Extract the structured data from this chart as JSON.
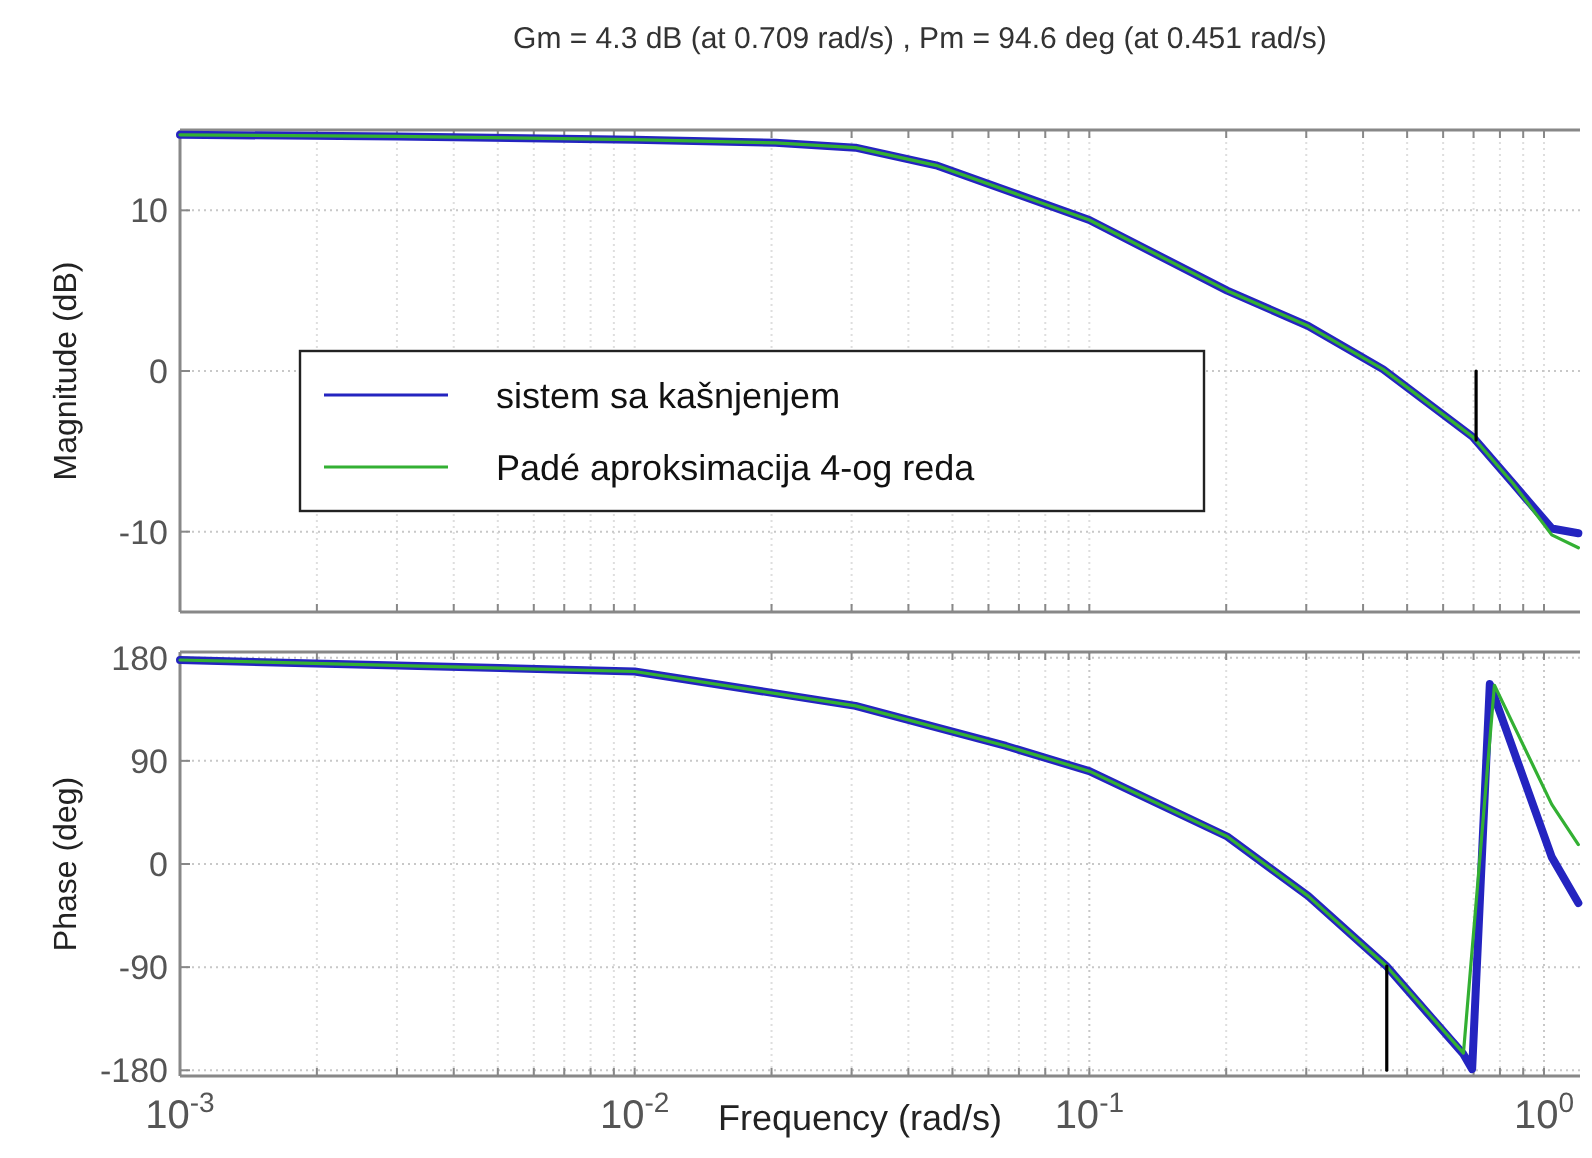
{
  "chart_data": [
    {
      "type": "line",
      "title": "Gm = 4.3 dB (at 0.709 rad/s) ,  Pm = 94.6 deg (at 0.451 rad/s)",
      "ylabel": "Magnitude (dB)",
      "log": "x",
      "grid": true,
      "legend": "left",
      "tick_labels": "y",
      "xlim": [
        0.001,
        1.2
      ],
      "ylim": [
        -15,
        15
      ],
      "yticks": [
        -10,
        0,
        10
      ],
      "xticks": [
        {
          "value": 0.001,
          "label": null
        },
        {
          "value": 0.002,
          "label": null
        },
        {
          "value": 0.003,
          "label": null
        },
        {
          "value": 0.004,
          "label": null
        },
        {
          "value": 0.005,
          "label": null
        },
        {
          "value": 0.006,
          "label": null
        },
        {
          "value": 0.007,
          "label": null
        },
        {
          "value": 0.008,
          "label": null
        },
        {
          "value": 0.009,
          "label": null
        },
        {
          "value": 0.01,
          "label": null
        },
        {
          "value": 0.02,
          "label": null
        },
        {
          "value": 0.03,
          "label": null
        },
        {
          "value": 0.04,
          "label": null
        },
        {
          "value": 0.05,
          "label": null
        },
        {
          "value": 0.06,
          "label": null
        },
        {
          "value": 0.07,
          "label": null
        },
        {
          "value": 0.08,
          "label": null
        },
        {
          "value": 0.09,
          "label": null
        },
        {
          "value": 0.1,
          "label": null
        },
        {
          "value": 0.2,
          "label": null
        },
        {
          "value": 0.3,
          "label": null
        },
        {
          "value": 0.4,
          "label": null
        },
        {
          "value": 0.5,
          "label": null
        },
        {
          "value": 0.6,
          "label": null
        },
        {
          "value": 0.7,
          "label": null
        },
        {
          "value": 0.8,
          "label": null
        },
        {
          "value": 0.9,
          "label": null
        },
        {
          "value": 1,
          "label": null
        }
      ],
      "series": [
        {
          "name": "sistem sa kašnjenjem",
          "color": "#2424c0",
          "x": [
            0.001,
            0.003,
            0.01,
            0.0204,
            0.0306,
            0.046,
            0.1,
            0.201,
            0.303,
            0.443,
            0.697,
            0.855,
            1.04,
            1.19
          ],
          "values": [
            14.7,
            14.6,
            14.4,
            14.2,
            13.9,
            12.8,
            9.4,
            5.0,
            2.8,
            0.1,
            -4.1,
            -7.0,
            -9.8,
            -10.1
          ]
        },
        {
          "name": "Padé aproksimacija 4-og reda",
          "color": "#33b033",
          "x": [
            0.001,
            0.003,
            0.01,
            0.0204,
            0.0306,
            0.046,
            0.1,
            0.201,
            0.303,
            0.443,
            0.697,
            0.855,
            1.04,
            1.19
          ],
          "values": [
            14.7,
            14.6,
            14.4,
            14.2,
            13.9,
            12.8,
            9.4,
            5.0,
            2.8,
            0.1,
            -4.1,
            -7.0,
            -10.2,
            -11
          ]
        },
        {
          "color": "#000000",
          "x": [
            0.709,
            0.709
          ],
          "values": [
            0,
            -4.3
          ]
        }
      ]
    },
    {
      "type": "line",
      "xlabel": "Frequency  (rad/s)",
      "ylabel": "Phase (deg)",
      "log": "x",
      "grid": true,
      "xlim": [
        0.001,
        1.2
      ],
      "ylim": [
        -185,
        185
      ],
      "yticks": [
        -180,
        -90,
        0,
        90,
        180
      ],
      "xticks": [
        {
          "value": 0.001,
          "label": "10$^{-3}$"
        },
        {
          "value": 0.002,
          "label": null
        },
        {
          "value": 0.003,
          "label": null
        },
        {
          "value": 0.004,
          "label": null
        },
        {
          "value": 0.005,
          "label": null
        },
        {
          "value": 0.006,
          "label": null
        },
        {
          "value": 0.007,
          "label": null
        },
        {
          "value": 0.008,
          "label": null
        },
        {
          "value": 0.009,
          "label": null
        },
        {
          "value": 0.01,
          "label": "10$^{-2}$"
        },
        {
          "value": 0.02,
          "label": null
        },
        {
          "value": 0.03,
          "label": null
        },
        {
          "value": 0.04,
          "label": null
        },
        {
          "value": 0.05,
          "label": null
        },
        {
          "value": 0.06,
          "label": null
        },
        {
          "value": 0.07,
          "label": null
        },
        {
          "value": 0.08,
          "label": null
        },
        {
          "value": 0.09,
          "label": null
        },
        {
          "value": 0.1,
          "label": "10$^{-1}$"
        },
        {
          "value": 0.2,
          "label": null
        },
        {
          "value": 0.3,
          "label": null
        },
        {
          "value": 0.4,
          "label": null
        },
        {
          "value": 0.5,
          "label": null
        },
        {
          "value": 0.6,
          "label": null
        },
        {
          "value": 0.7,
          "label": null
        },
        {
          "value": 0.8,
          "label": null
        },
        {
          "value": 0.9,
          "label": null
        },
        {
          "value": 1,
          "label": "10$^{0}$"
        }
      ],
      "series": [
        {
          "color": "#2424c0",
          "x": [
            0.001,
            0.01,
            0.0306,
            0.0656,
            0.1,
            0.201,
            0.303,
            0.45,
            0.665,
            0.695,
            0.76,
            1.04,
            1.19
          ],
          "values": [
            178,
            168,
            138,
            103,
            81,
            24,
            -28,
            -89,
            -166,
            -179,
            157,
            6,
            -34
          ]
        },
        {
          "color": "#33b033",
          "x": [
            0.001,
            0.01,
            0.0306,
            0.0656,
            0.1,
            0.201,
            0.303,
            0.45,
            0.665,
            0.778,
            1.04,
            1.19
          ],
          "values": [
            178,
            168,
            138,
            103,
            81,
            24,
            -28,
            -89,
            -165,
            156,
            52,
            17
          ]
        },
        {
          "color": "#000000",
          "x": [
            0.451,
            0.451
          ],
          "values": [
            -180,
            -89
          ]
        }
      ]
    }
  ]
}
